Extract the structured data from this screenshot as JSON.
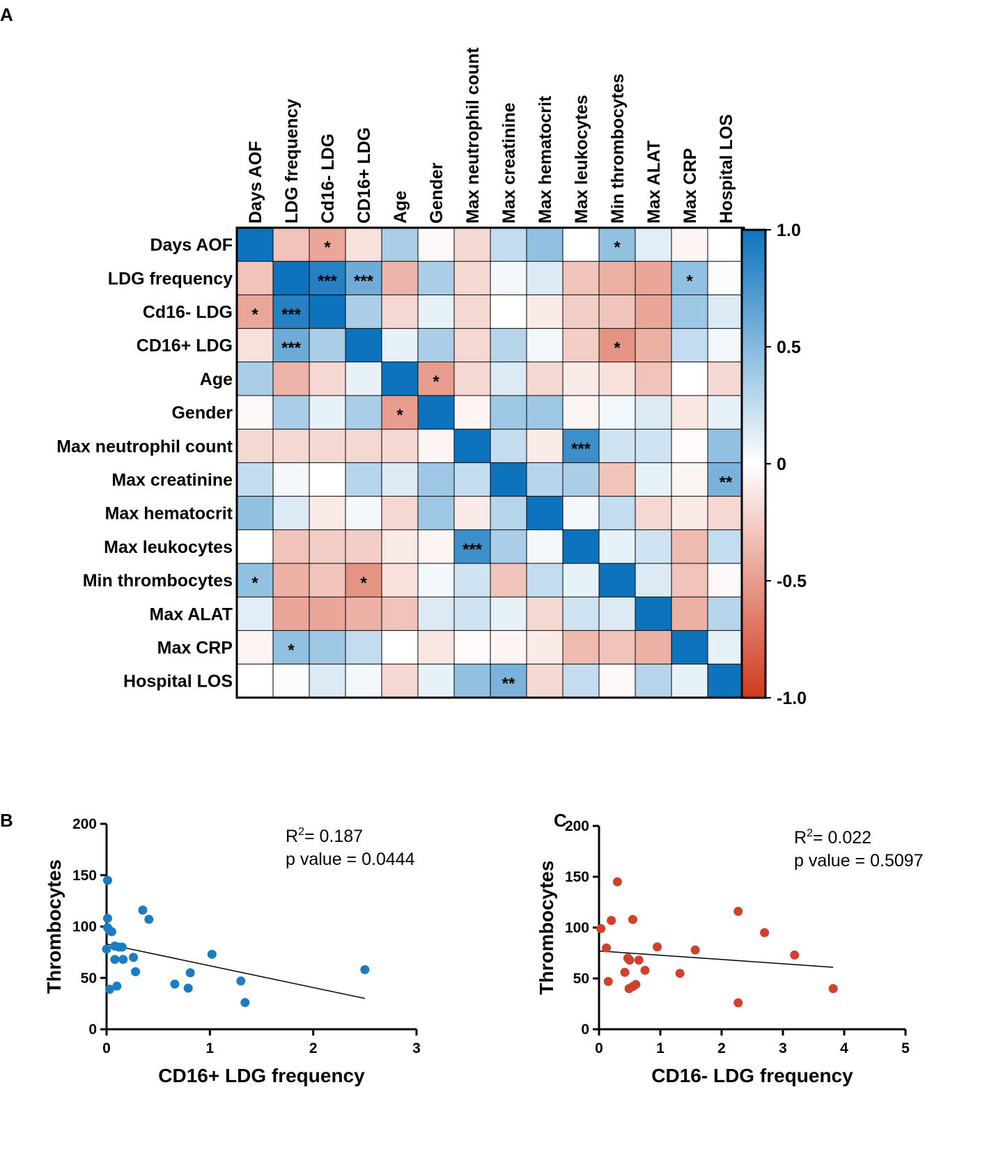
{
  "panels": {
    "a": "A",
    "b": "B",
    "c": "C"
  },
  "chart_data": [
    {
      "type": "heatmap",
      "panel": "A",
      "title": "",
      "variables": [
        "Days AOF",
        "LDG frequency",
        "Cd16- LDG",
        "CD16+ LDG",
        "Age",
        "Gender",
        "Max neutrophil count",
        "Max creatinine",
        "Max hematocrit",
        "Max leukocytes",
        "Min thrombocytes",
        "Max ALAT",
        "Max CRP",
        "Hospital LOS"
      ],
      "row_labels": [
        "Days AOF",
        "LDG frequency",
        "Cd16- LDG",
        "CD16+ LDG",
        "Age",
        "Gender",
        "Max neutrophil count",
        "Max creatinine",
        "Max hematocrit",
        "Max leukocytes",
        "Min thrombocytes",
        "Max ALAT",
        "Max CRP",
        "Hospital LOS"
      ],
      "values": [
        [
          1.0,
          -0.3,
          -0.45,
          -0.15,
          0.35,
          -0.03,
          -0.2,
          0.25,
          0.45,
          0.0,
          0.45,
          0.12,
          -0.05,
          0.0
        ],
        [
          -0.3,
          1.0,
          0.9,
          0.6,
          -0.38,
          0.35,
          -0.2,
          0.05,
          0.15,
          -0.3,
          -0.4,
          -0.45,
          0.45,
          0.02
        ],
        [
          -0.45,
          0.9,
          1.0,
          0.35,
          -0.2,
          0.1,
          -0.2,
          0.0,
          -0.1,
          -0.25,
          -0.3,
          -0.45,
          0.4,
          0.15
        ],
        [
          -0.15,
          0.6,
          0.35,
          1.0,
          0.1,
          0.35,
          -0.2,
          0.3,
          0.05,
          -0.25,
          -0.55,
          -0.4,
          0.25,
          0.05
        ],
        [
          0.35,
          -0.38,
          -0.2,
          0.1,
          1.0,
          -0.5,
          -0.2,
          0.15,
          -0.2,
          -0.1,
          -0.15,
          -0.3,
          0.0,
          -0.2
        ],
        [
          -0.03,
          0.35,
          0.1,
          0.35,
          -0.5,
          1.0,
          -0.05,
          0.4,
          0.4,
          -0.05,
          0.05,
          0.15,
          -0.12,
          0.1
        ],
        [
          -0.2,
          -0.2,
          -0.2,
          -0.2,
          -0.2,
          -0.05,
          1.0,
          0.25,
          -0.1,
          0.8,
          0.2,
          0.2,
          -0.02,
          0.45
        ],
        [
          0.25,
          0.05,
          0.0,
          0.3,
          0.15,
          0.4,
          0.25,
          1.0,
          0.3,
          0.35,
          -0.3,
          0.1,
          -0.05,
          0.55
        ],
        [
          0.45,
          0.15,
          -0.1,
          0.05,
          -0.2,
          0.4,
          -0.1,
          0.3,
          1.0,
          0.05,
          0.25,
          -0.2,
          -0.1,
          -0.2
        ],
        [
          0.0,
          -0.3,
          -0.25,
          -0.25,
          -0.1,
          -0.05,
          0.8,
          0.35,
          0.05,
          1.0,
          0.1,
          0.2,
          -0.35,
          0.25
        ],
        [
          0.45,
          -0.4,
          -0.3,
          -0.55,
          -0.15,
          0.05,
          0.2,
          -0.3,
          0.25,
          0.1,
          1.0,
          0.15,
          -0.3,
          -0.03
        ],
        [
          0.12,
          -0.45,
          -0.45,
          -0.4,
          -0.3,
          0.15,
          0.2,
          0.1,
          -0.2,
          0.2,
          0.15,
          1.0,
          -0.4,
          0.3
        ],
        [
          -0.05,
          0.45,
          0.4,
          0.25,
          0.0,
          -0.12,
          -0.02,
          -0.05,
          -0.1,
          -0.35,
          -0.3,
          -0.4,
          1.0,
          0.1
        ],
        [
          0.0,
          0.02,
          0.15,
          0.05,
          -0.2,
          0.1,
          0.45,
          0.55,
          -0.2,
          0.25,
          -0.03,
          0.3,
          0.1,
          1.0
        ]
      ],
      "significance": [
        [
          "",
          "",
          "*",
          "",
          "",
          "",
          "",
          "",
          "",
          "",
          "*",
          "",
          "",
          ""
        ],
        [
          "",
          "",
          "***",
          "***",
          "",
          "",
          "",
          "",
          "",
          "",
          "",
          "",
          "*",
          ""
        ],
        [
          "*",
          "***",
          "",
          "",
          "",
          "",
          "",
          "",
          "",
          "",
          "",
          "",
          "",
          ""
        ],
        [
          "",
          "***",
          "",
          "",
          "",
          "",
          "",
          "",
          "",
          "",
          "*",
          "",
          "",
          ""
        ],
        [
          "",
          "",
          "",
          "",
          "",
          "*",
          "",
          "",
          "",
          "",
          "",
          "",
          "",
          ""
        ],
        [
          "",
          "",
          "",
          "",
          "*",
          "",
          "",
          "",
          "",
          "",
          "",
          "",
          "",
          ""
        ],
        [
          "",
          "",
          "",
          "",
          "",
          "",
          "",
          "",
          "",
          "***",
          "",
          "",
          "",
          ""
        ],
        [
          "",
          "",
          "",
          "",
          "",
          "",
          "",
          "",
          "",
          "",
          "",
          "",
          "",
          "**"
        ],
        [
          "",
          "",
          "",
          "",
          "",
          "",
          "",
          "",
          "",
          "",
          "",
          "",
          "",
          ""
        ],
        [
          "",
          "",
          "",
          "",
          "",
          "",
          "***",
          "",
          "",
          "",
          "",
          "",
          "",
          ""
        ],
        [
          "*",
          "",
          "",
          "*",
          "",
          "",
          "",
          "",
          "",
          "",
          "",
          "",
          "",
          ""
        ],
        [
          "",
          "",
          "",
          "",
          "",
          "",
          "",
          "",
          "",
          "",
          "",
          "",
          "",
          ""
        ],
        [
          "",
          "*",
          "",
          "",
          "",
          "",
          "",
          "",
          "",
          "",
          "",
          "",
          "",
          ""
        ],
        [
          "",
          "",
          "",
          "",
          "",
          "",
          "",
          "**",
          "",
          "",
          "",
          "",
          "",
          ""
        ]
      ],
      "colorbar": {
        "range": [
          -1.0,
          1.0
        ],
        "ticks": [
          "1.0",
          "0.5",
          "0",
          "-0.5",
          "-1.0"
        ],
        "tick_values": [
          1.0,
          0.5,
          0,
          -0.5,
          -1.0
        ],
        "low_color": "#d03a1c",
        "mid_color": "#ffffff",
        "high_color": "#0d73bd"
      }
    },
    {
      "type": "scatter",
      "panel": "B",
      "xlabel": "CD16+ LDG frequency",
      "ylabel": "Thrombocytes",
      "xlim": [
        0,
        3
      ],
      "ylim": [
        0,
        200
      ],
      "xticks": [
        "0",
        "1",
        "2",
        "3"
      ],
      "xtick_values": [
        0,
        1,
        2,
        3
      ],
      "yticks": [
        "0",
        "50",
        "100",
        "150",
        "200"
      ],
      "ytick_values": [
        0,
        50,
        100,
        150,
        200
      ],
      "color": "#1a7dc4",
      "points": [
        [
          0.01,
          145
        ],
        [
          0.01,
          108
        ],
        [
          0.01,
          99
        ],
        [
          0.03,
          96
        ],
        [
          0.05,
          95
        ],
        [
          0.0,
          78
        ],
        [
          0.08,
          81
        ],
        [
          0.12,
          80
        ],
        [
          0.15,
          80
        ],
        [
          0.08,
          68
        ],
        [
          0.16,
          68
        ],
        [
          0.26,
          70
        ],
        [
          0.28,
          56
        ],
        [
          0.35,
          116
        ],
        [
          0.41,
          107
        ],
        [
          0.1,
          42
        ],
        [
          0.03,
          39
        ],
        [
          0.66,
          44
        ],
        [
          0.79,
          40
        ],
        [
          0.81,
          55
        ],
        [
          1.02,
          73
        ],
        [
          1.3,
          47
        ],
        [
          1.34,
          26
        ],
        [
          2.5,
          58
        ]
      ],
      "fit_line": [
        [
          0,
          83
        ],
        [
          2.5,
          30
        ]
      ],
      "annotation": {
        "r2_prefix": "R",
        "r2_sup": "2",
        "r2_text": "= 0.187",
        "p_text": "p value = 0.0444"
      }
    },
    {
      "type": "scatter",
      "panel": "C",
      "xlabel": "CD16- LDG frequency",
      "ylabel": "Thrombocytes",
      "xlim": [
        0,
        5
      ],
      "ylim": [
        0,
        200
      ],
      "xticks": [
        "0",
        "1",
        "2",
        "3",
        "4",
        "5"
      ],
      "xtick_values": [
        0,
        1,
        2,
        3,
        4,
        5
      ],
      "yticks": [
        "0",
        "50",
        "100",
        "150",
        "200"
      ],
      "ytick_values": [
        0,
        50,
        100,
        150,
        200
      ],
      "color": "#d1402a",
      "points": [
        [
          0.03,
          99
        ],
        [
          0.2,
          107
        ],
        [
          0.3,
          145
        ],
        [
          0.55,
          108
        ],
        [
          0.12,
          80
        ],
        [
          0.15,
          47
        ],
        [
          0.42,
          56
        ],
        [
          0.47,
          70
        ],
        [
          0.5,
          68
        ],
        [
          0.49,
          40
        ],
        [
          0.55,
          42
        ],
        [
          0.6,
          44
        ],
        [
          0.65,
          68
        ],
        [
          0.75,
          58
        ],
        [
          0.95,
          81
        ],
        [
          1.32,
          55
        ],
        [
          1.57,
          78
        ],
        [
          2.27,
          116
        ],
        [
          2.27,
          26
        ],
        [
          2.7,
          95
        ],
        [
          3.19,
          73
        ],
        [
          3.82,
          40
        ]
      ],
      "fit_line": [
        [
          0,
          77
        ],
        [
          3.82,
          61
        ]
      ],
      "annotation": {
        "r2_prefix": "R",
        "r2_sup": "2",
        "r2_text": "= 0.022",
        "p_text": "p value = 0.5097"
      }
    }
  ]
}
